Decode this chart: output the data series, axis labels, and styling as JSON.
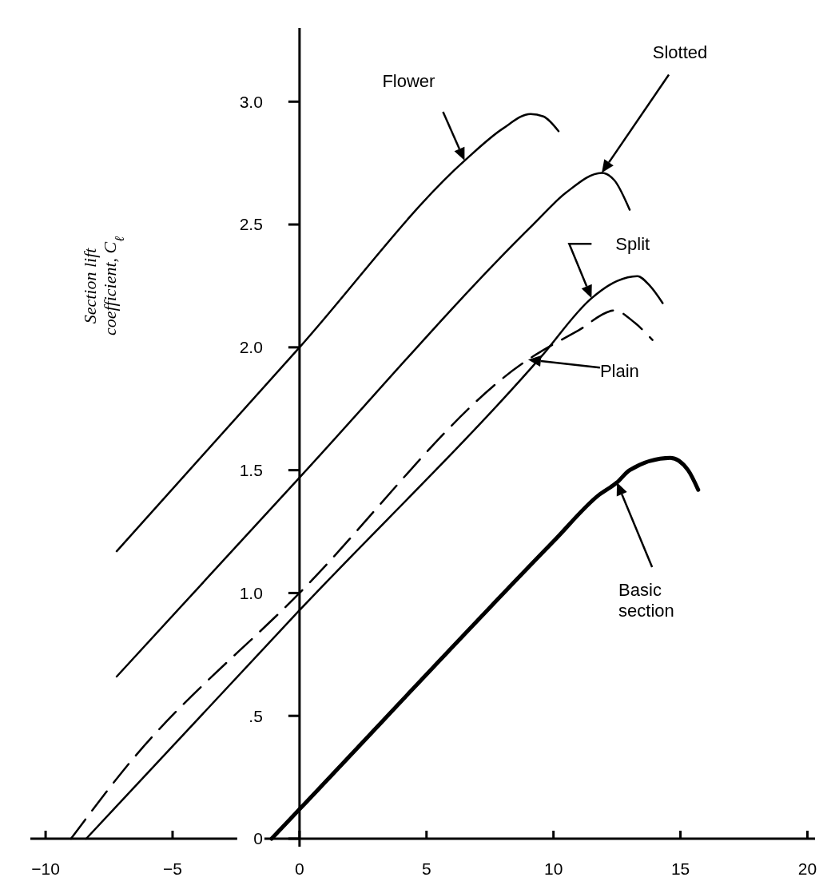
{
  "chart_data": {
    "type": "line",
    "ylabel": "Section lift coefficient, C$_{ℓ}$",
    "xlim": [
      -10.6,
      20.3
    ],
    "ylim": [
      0,
      3.3
    ],
    "xticks": [
      {
        "value": -10,
        "label": "−10"
      },
      {
        "value": -5,
        "label": "−5"
      },
      0,
      5,
      10,
      15,
      20
    ],
    "yticks": [
      0,
      {
        "value": 0.5,
        "label": ".5"
      },
      {
        "value": 1,
        "label": "1.0"
      },
      1.5,
      {
        "value": 2,
        "label": "2.0"
      },
      2.5,
      {
        "value": 3,
        "label": "3.0"
      }
    ],
    "series": [
      {
        "color": "#000000",
        "line_style": "solid",
        "x": [
          -7.2,
          0,
          6.5,
          8,
          9.1,
          9.6,
          10.2
        ],
        "values": [
          1.17,
          2.0,
          2.76,
          2.89,
          2.95,
          2.94,
          2.88
        ]
      },
      {
        "color": "#000000",
        "line_style": "solid",
        "x": [
          -7.2,
          0,
          9.2,
          10.5,
          11.9,
          12.4,
          13.0
        ],
        "values": [
          0.66,
          1.47,
          2.5,
          2.63,
          2.71,
          2.68,
          2.56
        ]
      },
      {
        "color": "#000000",
        "line_style": "solid",
        "x": [
          -8.4,
          0,
          9.5,
          11.5,
          12.5,
          13.3,
          13.8,
          14.3
        ],
        "values": [
          0,
          0.93,
          1.96,
          2.2,
          2.27,
          2.29,
          2.25,
          2.18
        ]
      },
      {
        "color": "#000000",
        "line_style": "dashed",
        "x": [
          -9.0,
          -7,
          0,
          9,
          11,
          12.4,
          13.2,
          13.9
        ],
        "values": [
          0,
          0.27,
          1.0,
          1.95,
          2.07,
          2.15,
          2.1,
          2.03
        ]
      },
      {
        "color": "#000000",
        "line_style": "solid",
        "x": [
          -1.1,
          0,
          10,
          11.8,
          12.5,
          13,
          14.6,
          15.3,
          15.7
        ],
        "values": [
          0,
          0.12,
          1.21,
          1.4,
          1.45,
          1.5,
          1.55,
          1.5,
          1.42
        ]
      }
    ],
    "annotations": [
      "Flower",
      "Slotted",
      {
        "text": "Split",
        "x": 11.5,
        "y": 2.2
      },
      "Plain",
      "Basic section"
    ]
  }
}
